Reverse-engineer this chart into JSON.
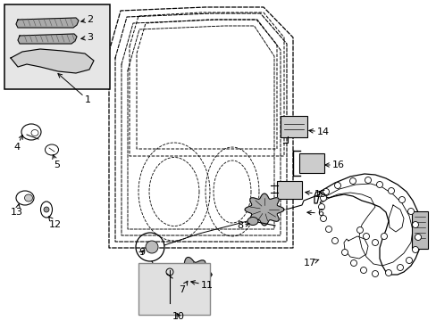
{
  "background_color": "#ffffff",
  "line_color": "#000000",
  "inset_bg": "#e8e8e8",
  "figsize": [
    4.89,
    3.6
  ],
  "dpi": 100
}
